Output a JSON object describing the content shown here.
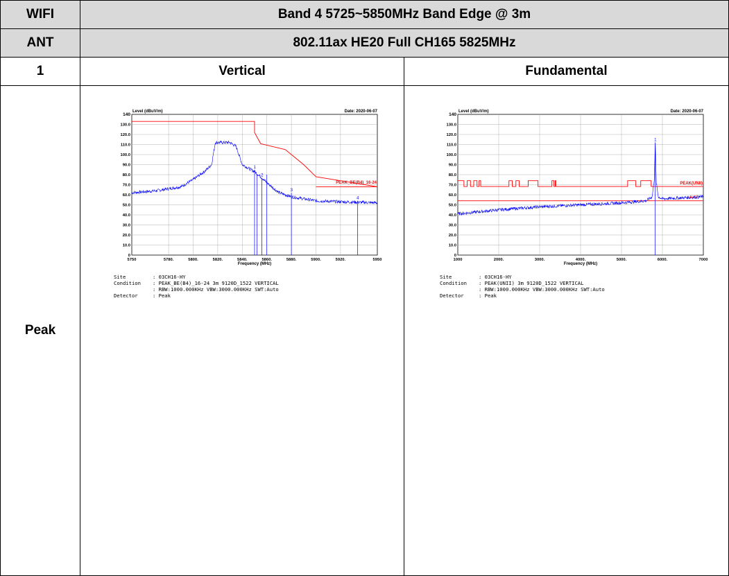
{
  "table": {
    "r1c1": "WIFI",
    "r1c2": "Band 4 5725~5850MHz Band Edge @ 3m",
    "r2c1": "ANT",
    "r2c2": "802.11ax HE20 Full CH165 5825MHz",
    "r3c1": "1",
    "r3c2": "Vertical",
    "r3c3": "Fundamental",
    "r4c1": "Peak"
  },
  "chart_data": [
    {
      "type": "line",
      "ylabel": "Level (dBuV/m)",
      "date": "Date: 2020-06-07",
      "xlabel": "Frequency (MHz)",
      "xlim": [
        5750,
        5950
      ],
      "ylim": [
        0,
        140
      ],
      "xticks": [
        "5750",
        "5780.",
        "5800.",
        "5820.",
        "5840.",
        "5860.",
        "5880.",
        "5900.",
        "5920.",
        "5950"
      ],
      "xtick_values": [
        5750,
        5780,
        5800,
        5820,
        5840,
        5860,
        5880,
        5900,
        5920,
        5950
      ],
      "yticks": [
        "0",
        "10.0",
        "20.0",
        "30.0",
        "40.0",
        "50.0",
        "60.0",
        "70.0",
        "80.0",
        "90.0",
        "100.0",
        "110.0",
        "120.0",
        "130.0",
        "140"
      ],
      "ytick_values": [
        0,
        10,
        20,
        30,
        40,
        50,
        60,
        70,
        80,
        90,
        100,
        110,
        120,
        130,
        140
      ],
      "grid": true,
      "limit_label": "PEAK_BE(B4)_16-24",
      "limit_line": {
        "x": [
          5750,
          5850,
          5850,
          5855,
          5875,
          5890,
          5900,
          5950
        ],
        "y": [
          133,
          133,
          122,
          110.8,
          105,
          90,
          78,
          68
        ]
      },
      "trace_points": {
        "x": [
          5750,
          5770,
          5790,
          5800,
          5810,
          5815,
          5818,
          5830,
          5835,
          5840,
          5850,
          5855,
          5860,
          5870,
          5880,
          5900,
          5920,
          5950
        ],
        "y": [
          62,
          64,
          68,
          75,
          84,
          90,
          112,
          112,
          108,
          90,
          83,
          78,
          72,
          62,
          58,
          54,
          53,
          52
        ]
      },
      "markers": [
        {
          "label": "1",
          "x": 5850,
          "y": 85
        },
        {
          "label": "2",
          "x": 5856,
          "y": 77
        },
        {
          "label": "3",
          "x": 5880,
          "y": 62
        },
        {
          "label": "4",
          "x": 5934,
          "y": 54
        }
      ],
      "extra_marker_lines_x": [
        5852,
        5860
      ],
      "site_label": "Site",
      "site_value": ": 03CH16-HY",
      "condition_label": "Condition",
      "condition_value": ": PEAK_BE(B4)_16-24 3m 9120D_1522 VERTICAL",
      "condition_value2": ": RBW:1000.000KHz VBW:3000.000KHz SWT:Auto",
      "detector_label": "Detector",
      "detector_value": ": Peak"
    },
    {
      "type": "line",
      "ylabel": "Level (dBuV/m)",
      "date": "Date: 2020-06-07",
      "xlabel": "Frequency (MHz)",
      "xlim": [
        1000,
        7000
      ],
      "ylim": [
        0,
        140
      ],
      "xticks": [
        "1000",
        "2000.",
        "3000.",
        "4000.",
        "5000.",
        "6000.",
        "7000"
      ],
      "xtick_values": [
        1000,
        2000,
        3000,
        4000,
        5000,
        6000,
        7000
      ],
      "yticks": [
        "0",
        "10.0",
        "20.0",
        "30.0",
        "40.0",
        "50.0",
        "60.0",
        "70.0",
        "80.0",
        "90.0",
        "100.0",
        "110.0",
        "120.0",
        "130.0",
        "140"
      ],
      "ytick_values": [
        0,
        10,
        20,
        30,
        40,
        50,
        60,
        70,
        80,
        90,
        100,
        110,
        120,
        130,
        140
      ],
      "grid": true,
      "limit_label": "PEAK(UNII)",
      "limit_label2": "AVG",
      "limit_peak_y": 74,
      "limit_peak_low_y": 68.2,
      "limit_peak_segments": [
        [
          1000,
          1150,
          74
        ],
        [
          1150,
          1230,
          68.2
        ],
        [
          1230,
          1310,
          74
        ],
        [
          1310,
          1390,
          68.2
        ],
        [
          1390,
          1470,
          74
        ],
        [
          1470,
          1520,
          68.2
        ],
        [
          1520,
          1560,
          74
        ],
        [
          1560,
          2250,
          68.2
        ],
        [
          2250,
          2330,
          74
        ],
        [
          2330,
          2420,
          68.2
        ],
        [
          2420,
          2500,
          74
        ],
        [
          2500,
          2720,
          68.2
        ],
        [
          2720,
          2960,
          74
        ],
        [
          2960,
          3300,
          68.2
        ],
        [
          3300,
          3350,
          74
        ],
        [
          3350,
          3380,
          68.2
        ],
        [
          3380,
          3400,
          74
        ],
        [
          3400,
          5150,
          68.2
        ],
        [
          5150,
          5350,
          74
        ],
        [
          5350,
          5470,
          68.2
        ],
        [
          5470,
          5725,
          74
        ],
        [
          5725,
          7000,
          68.2
        ]
      ],
      "limit_avg_y": 54,
      "trace_points": {
        "x": [
          1000,
          1500,
          2000,
          3000,
          4000,
          5000,
          5600,
          5750,
          5800,
          5825,
          5850,
          5900,
          6000,
          6500,
          7000
        ],
        "y": [
          41,
          43,
          45,
          48,
          50,
          52,
          54,
          58,
          75,
          112,
          72,
          58,
          56,
          57,
          58
        ]
      },
      "markers": [
        {
          "label": "1",
          "x": 5825,
          "y": 112
        }
      ],
      "site_label": "Site",
      "site_value": ": 03CH16-HY",
      "condition_label": "Condition",
      "condition_value": ": PEAK(UNII) 3m 9120D_1522 VERTICAL",
      "condition_value2": ": RBW:1000.000KHz VBW:3000.000KHz SWT:Auto",
      "detector_label": "Detector",
      "detector_value": ": Peak"
    }
  ],
  "colors": {
    "header_bg": "#d9d9d9",
    "limit": "#ff0000",
    "trace": "#0000ff",
    "grid": "#a0a0a0"
  }
}
